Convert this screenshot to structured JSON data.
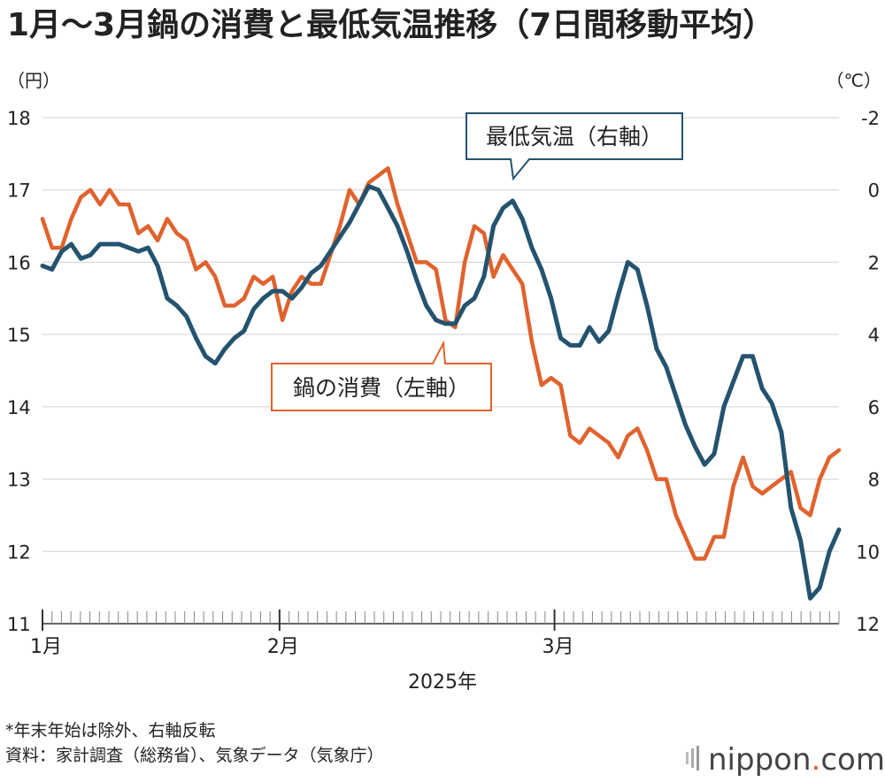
{
  "title": "1月〜3月鍋の消費と最低気温推移（7日間移動平均）",
  "units": {
    "left": "（円）",
    "right": "（℃）"
  },
  "notes": [
    "*年末年始は除外、右軸反転",
    "資料：家計調査（総務省）、気象データ（気象庁）"
  ],
  "logo": {
    "name": "nippon",
    "dot": ".",
    "suffix": "com"
  },
  "colors": {
    "nabe": "#e0622d",
    "temp": "#24536f",
    "grid": "#d0d0d0",
    "axis": "#333333"
  },
  "chart_data": {
    "type": "line",
    "title": "1月〜3月鍋の消費と最低気温推移（7日間移動平均）",
    "xlabel": "2025年",
    "x_ticks": [
      "1月",
      "2月",
      "3月"
    ],
    "y_left": {
      "label": "（円）",
      "range": [
        11,
        18
      ],
      "ticks": [
        "11",
        "12",
        "13",
        "14",
        "15",
        "16",
        "17",
        "18"
      ]
    },
    "y_right": {
      "label": "（℃）",
      "range": [
        12,
        -2
      ],
      "inverted": true,
      "ticks": [
        "12",
        "10",
        "8",
        "6",
        "4",
        "2",
        "0",
        "-2"
      ]
    },
    "series": [
      {
        "name": "鍋の消費（左軸）",
        "axis": "left",
        "color": "#e0622d",
        "values": [
          16.6,
          16.2,
          16.2,
          16.6,
          16.9,
          17.0,
          16.8,
          17.0,
          16.8,
          16.8,
          16.4,
          16.5,
          16.3,
          16.6,
          16.4,
          16.3,
          15.9,
          16.0,
          15.8,
          15.4,
          15.4,
          15.5,
          15.8,
          15.7,
          15.8,
          15.2,
          15.6,
          15.8,
          15.7,
          15.7,
          16.1,
          16.5,
          17.0,
          16.8,
          17.1,
          17.2,
          17.3,
          16.8,
          16.4,
          16.0,
          16.0,
          15.9,
          15.2,
          15.1,
          16.0,
          16.5,
          16.4,
          15.8,
          16.1,
          15.9,
          15.7,
          14.9,
          14.3,
          14.4,
          14.3,
          13.6,
          13.5,
          13.7,
          13.6,
          13.5,
          13.3,
          13.6,
          13.7,
          13.4,
          13.0,
          13.0,
          12.5,
          12.2,
          11.9,
          11.9,
          12.2,
          12.2,
          12.9,
          13.3,
          12.9,
          12.8,
          12.9,
          13.0,
          13.1,
          12.6,
          12.5,
          13.0,
          13.3,
          13.4
        ]
      },
      {
        "name": "最低気温（右軸）",
        "axis": "right",
        "color": "#24536f",
        "values": [
          2.1,
          2.2,
          1.7,
          1.5,
          1.9,
          1.8,
          1.5,
          1.5,
          1.5,
          1.6,
          1.7,
          1.6,
          2.1,
          3.0,
          3.2,
          3.5,
          4.1,
          4.6,
          4.8,
          4.4,
          4.1,
          3.9,
          3.3,
          3.0,
          2.8,
          2.8,
          3.0,
          2.7,
          2.3,
          2.1,
          1.7,
          1.3,
          0.9,
          0.4,
          -0.1,
          0.0,
          0.5,
          1.0,
          1.7,
          2.5,
          3.2,
          3.6,
          3.7,
          3.7,
          3.2,
          3.0,
          2.4,
          1.0,
          0.5,
          0.3,
          0.8,
          1.6,
          2.2,
          3.0,
          4.1,
          4.3,
          4.3,
          3.8,
          4.2,
          3.9,
          2.9,
          2.0,
          2.2,
          3.2,
          4.4,
          4.9,
          5.7,
          6.5,
          7.1,
          7.6,
          7.3,
          6.0,
          5.3,
          4.6,
          4.6,
          5.5,
          5.9,
          6.7,
          8.8,
          9.7,
          11.3,
          11.0,
          10.0,
          9.4
        ]
      }
    ],
    "annotations": [
      "最低気温（右軸）",
      "鍋の消費（左軸）"
    ]
  }
}
